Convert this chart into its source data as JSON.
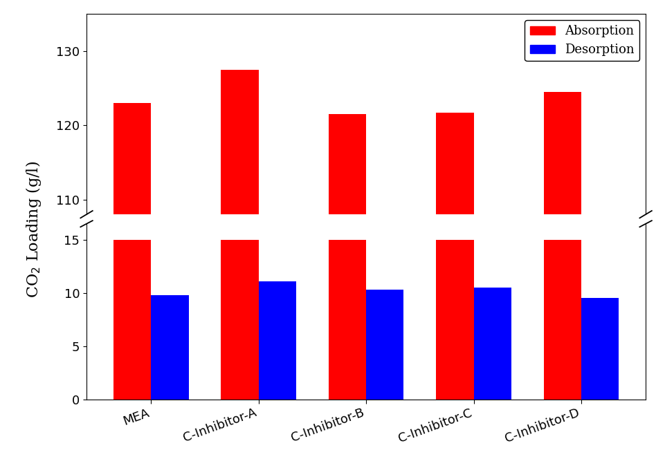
{
  "categories": [
    "MEA",
    "C-Inhibitor-A",
    "C-Inhibitor-B",
    "C-Inhibitor-C",
    "C-Inhibitor-D"
  ],
  "absorption_values": [
    123.0,
    127.5,
    121.5,
    121.7,
    124.5
  ],
  "desorption_values": [
    9.8,
    11.1,
    10.3,
    10.5,
    9.5
  ],
  "absorption_lower": [
    15.0,
    15.0,
    15.0,
    15.0,
    15.0
  ],
  "bar_color_absorption": "#FF0000",
  "bar_color_desorption": "#0000FF",
  "ylabel": "CO$_2$ Loading (g/l)",
  "lower_ylim": [
    0,
    16.5
  ],
  "upper_ylim": [
    108,
    135
  ],
  "lower_yticks": [
    0,
    5,
    10,
    15
  ],
  "upper_yticks": [
    110,
    120,
    130
  ],
  "bar_width": 0.35,
  "legend_labels": [
    "Absorption",
    "Desorption"
  ],
  "background_color": "#FFFFFF"
}
